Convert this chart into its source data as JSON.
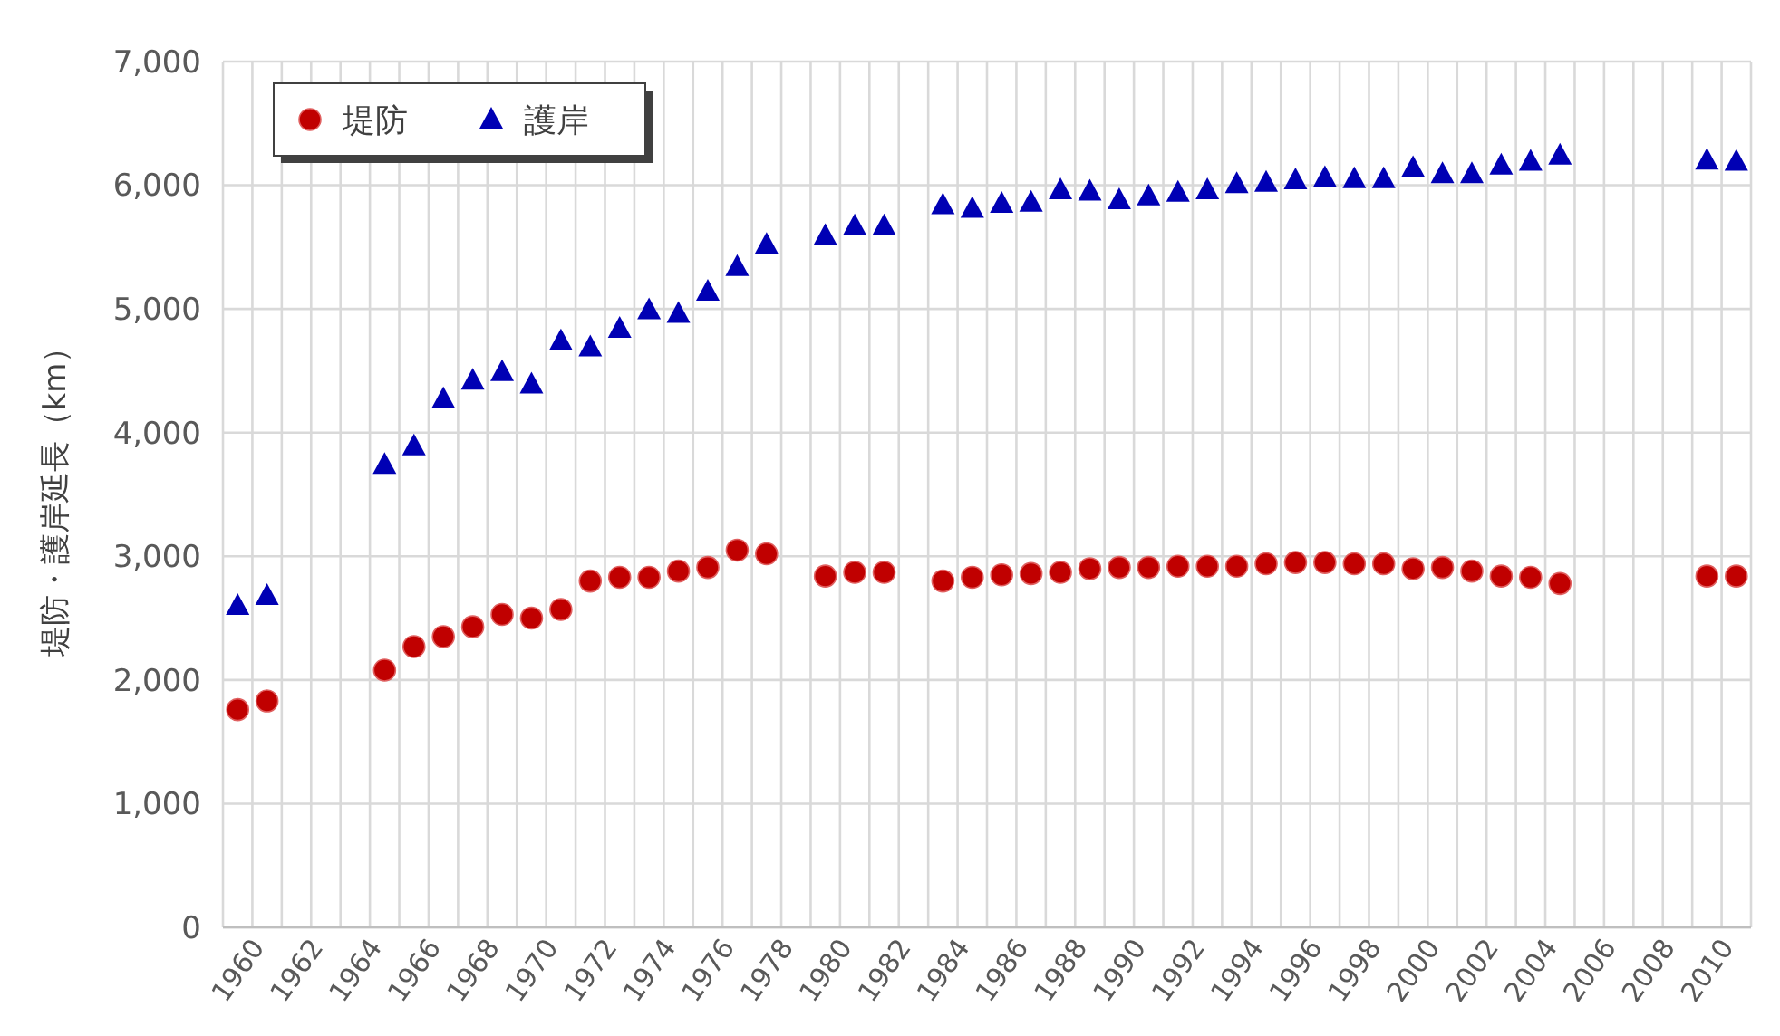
{
  "chart_data": {
    "type": "scatter",
    "ylabel": "堤防・護岸延長（km）",
    "categories": [
      "1960",
      null,
      "1962",
      null,
      "1964",
      null,
      "1966",
      null,
      "1968",
      null,
      "1970",
      null,
      "1972",
      null,
      "1974",
      null,
      "1976",
      null,
      "1978",
      null,
      "1980",
      null,
      "1982",
      null,
      "1984",
      null,
      "1986",
      null,
      "1988",
      null,
      "1990",
      null,
      "1992",
      null,
      "1994",
      null,
      "1996",
      null,
      "1998",
      null,
      "2000",
      null,
      "2002",
      null,
      "2004",
      null,
      "2006",
      null,
      "2008",
      null,
      "2010",
      null
    ],
    "series": [
      {
        "name": "堤防",
        "color": "#c00000",
        "marker": "circle",
        "values": [
          1760,
          1830,
          null,
          null,
          null,
          2080,
          2270,
          2350,
          2430,
          2530,
          2500,
          2570,
          2800,
          2830,
          2830,
          2880,
          2910,
          3050,
          3020,
          null,
          2840,
          2870,
          2870,
          null,
          2800,
          2830,
          2850,
          2860,
          2870,
          2900,
          2910,
          2910,
          2920,
          2920,
          2920,
          2940,
          2950,
          2950,
          2940,
          2940,
          2900,
          2910,
          2880,
          2840,
          2830,
          2780,
          null,
          null,
          null,
          null,
          2840,
          2840
        ]
      },
      {
        "name": "護岸",
        "color": "#0000b4",
        "marker": "triangle",
        "values": [
          2600,
          2680,
          null,
          null,
          null,
          3740,
          3890,
          4270,
          4420,
          4490,
          4390,
          4740,
          4690,
          4840,
          4990,
          4960,
          5140,
          5340,
          5520,
          null,
          5590,
          5670,
          5670,
          null,
          5840,
          5810,
          5850,
          5860,
          5960,
          5950,
          5880,
          5910,
          5940,
          5960,
          6010,
          6020,
          6040,
          6060,
          6050,
          6050,
          6140,
          6090,
          6090,
          6160,
          6190,
          6240,
          null,
          null,
          null,
          null,
          6200,
          6190
        ]
      }
    ],
    "ylim": [
      0,
      7000
    ],
    "yticks": [
      {
        "value": 0,
        "label": "0"
      },
      {
        "value": 1000,
        "label": "1,000"
      },
      {
        "value": 2000,
        "label": "2,000"
      },
      {
        "value": 3000,
        "label": "3,000"
      },
      {
        "value": 4000,
        "label": "4,000"
      },
      {
        "value": 5000,
        "label": "5,000"
      },
      {
        "value": 6000,
        "label": "6,000"
      },
      {
        "value": 7000,
        "label": "7,000"
      }
    ],
    "grid": true,
    "legend": "top left"
  }
}
